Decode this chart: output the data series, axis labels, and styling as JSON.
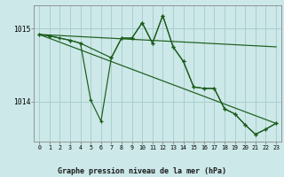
{
  "background_color": "#cce8e8",
  "grid_color": "#aacece",
  "line_color": "#1a5c1a",
  "title": "Graphe pression niveau de la mer (hPa)",
  "xlim": [
    -0.5,
    23.5
  ],
  "ylim": [
    1013.45,
    1015.32
  ],
  "xticks": [
    0,
    1,
    2,
    3,
    4,
    5,
    6,
    7,
    8,
    9,
    10,
    11,
    12,
    13,
    14,
    15,
    16,
    17,
    18,
    19,
    20,
    21,
    22,
    23
  ],
  "yticks": [
    1014,
    1015
  ],
  "series": [
    {
      "x": [
        0,
        1,
        2,
        3,
        4,
        5,
        6,
        7,
        8,
        9,
        10,
        11,
        12,
        13,
        14,
        15,
        16,
        17,
        18,
        19,
        20,
        21,
        22,
        23
      ],
      "y": [
        1014.92,
        1014.9,
        1014.87,
        1014.84,
        1014.8,
        1014.02,
        1013.73,
        1014.6,
        1014.87,
        1014.87,
        1015.08,
        1014.8,
        1015.18,
        1014.75,
        1014.55,
        1014.2,
        1014.18,
        1014.18,
        1013.9,
        1013.83,
        1013.68,
        1013.55,
        1013.62,
        1013.7
      ]
    },
    {
      "x": [
        0,
        1,
        3,
        4,
        7,
        8,
        9,
        10,
        11,
        12,
        13,
        14,
        15,
        16,
        17,
        18,
        19,
        20,
        21,
        22,
        23
      ],
      "y": [
        1014.92,
        1014.9,
        1014.84,
        1014.8,
        1014.6,
        1014.87,
        1014.87,
        1015.08,
        1014.8,
        1015.18,
        1014.75,
        1014.55,
        1014.2,
        1014.18,
        1014.18,
        1013.9,
        1013.83,
        1013.68,
        1013.55,
        1013.62,
        1013.7
      ]
    },
    {
      "x": [
        0,
        23
      ],
      "y": [
        1014.92,
        1014.75
      ]
    },
    {
      "x": [
        0,
        23
      ],
      "y": [
        1014.92,
        1013.7
      ]
    }
  ]
}
